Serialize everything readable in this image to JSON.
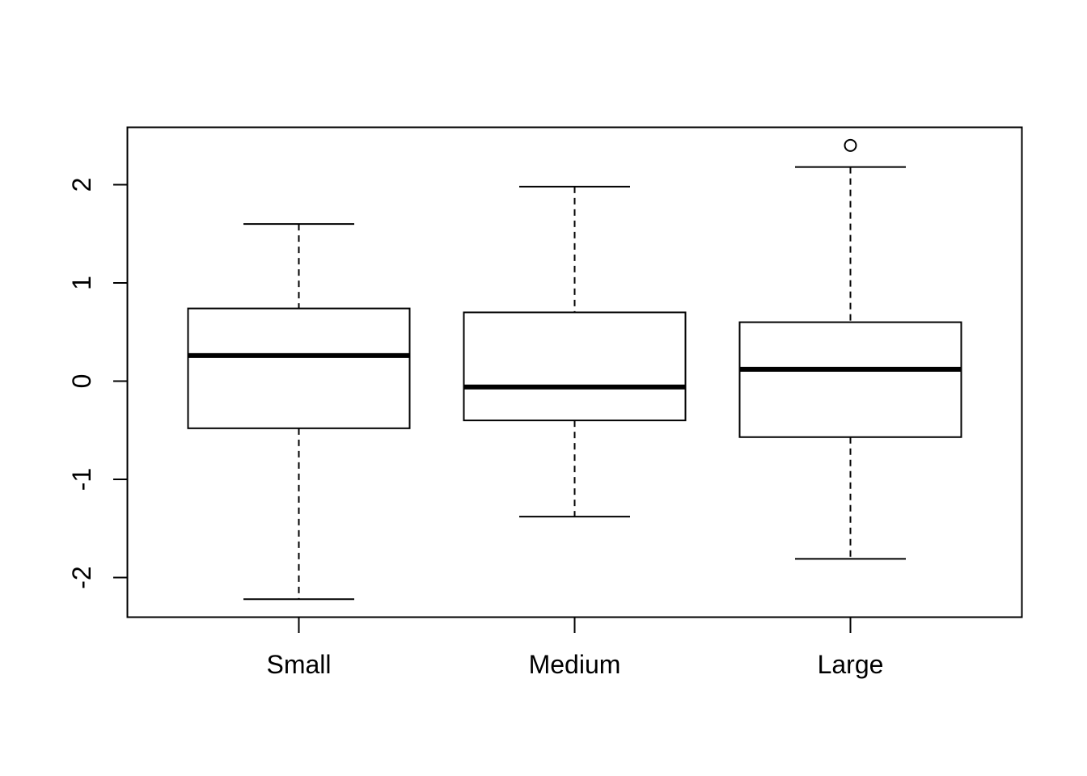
{
  "chart_data": {
    "type": "boxplot",
    "title": "",
    "xlabel": "",
    "ylabel": "",
    "categories": [
      "Small",
      "Medium",
      "Large"
    ],
    "ylim": [
      -2.4,
      2.6
    ],
    "yticks": [
      -2,
      -1,
      0,
      1,
      2
    ],
    "ytick_labels": [
      "-2",
      "-1",
      "0",
      "1",
      "2"
    ],
    "boxes": [
      {
        "category": "Small",
        "whisker_low": -2.22,
        "q1": -0.48,
        "median": 0.26,
        "q3": 0.74,
        "whisker_high": 1.6,
        "outliers": []
      },
      {
        "category": "Medium",
        "whisker_low": -1.38,
        "q1": -0.4,
        "median": -0.06,
        "q3": 0.7,
        "whisker_high": 1.98,
        "outliers": []
      },
      {
        "category": "Large",
        "whisker_low": -1.81,
        "q1": -0.57,
        "median": 0.12,
        "q3": 0.6,
        "whisker_high": 2.18,
        "outliers": [
          2.4
        ]
      }
    ],
    "grid": false,
    "colors": {
      "stroke": "#000000",
      "fill": "#ffffff"
    }
  }
}
